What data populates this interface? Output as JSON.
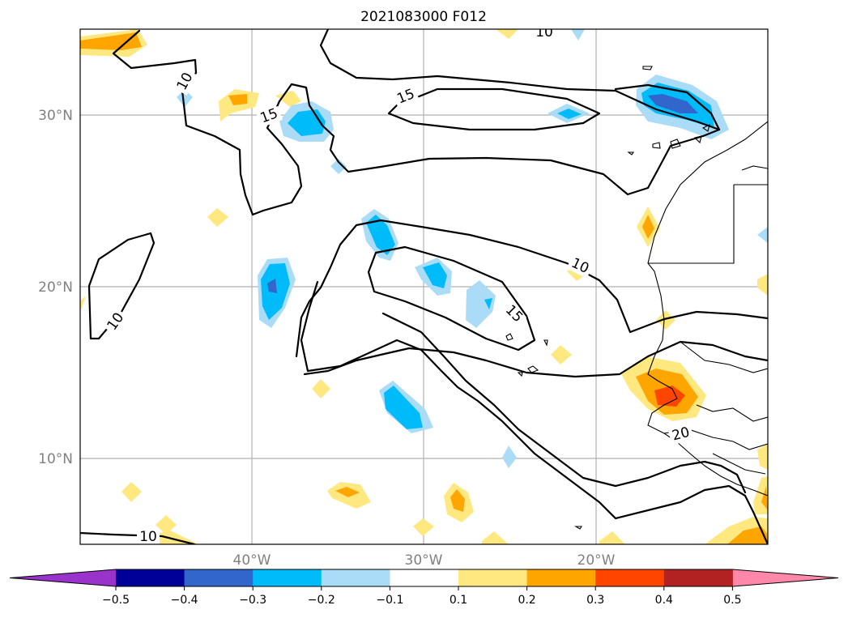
{
  "title": "2021083000 F012",
  "map": {
    "lon_range": [
      -50,
      -10
    ],
    "lat_range": [
      5,
      35
    ],
    "lat_ticks": [
      {
        "lat": 30,
        "label": "30°N"
      },
      {
        "lat": 20,
        "label": "20°N"
      },
      {
        "lat": 10,
        "label": "10°N"
      }
    ],
    "lon_ticks": [
      {
        "lon": -40,
        "label": "40°W"
      },
      {
        "lon": -30,
        "label": "30°W"
      },
      {
        "lon": -20,
        "label": "20°W"
      }
    ],
    "contour_labels": [
      "10",
      "10",
      "15",
      "15",
      "10",
      "15",
      "10",
      "20",
      "10"
    ]
  },
  "colorbar": {
    "colors": [
      "#9933cc",
      "#000099",
      "#3366cc",
      "#00bbf9",
      "#aadcf8",
      "#ffffff",
      "#ffe880",
      "#ffa500",
      "#ff4500",
      "#b22222",
      "#ff88aa"
    ],
    "labels": [
      "−0.5",
      "−0.4",
      "−0.3",
      "−0.2",
      "−0.1",
      "0.1",
      "0.2",
      "0.3",
      "0.4",
      "0.5"
    ],
    "extend": "both"
  }
}
